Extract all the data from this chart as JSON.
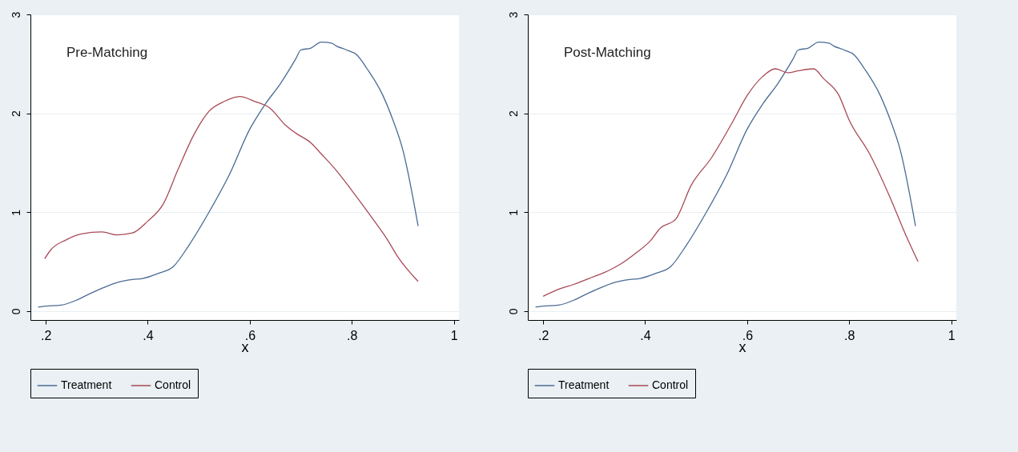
{
  "chart_data": [
    {
      "type": "line",
      "xlabel": "x",
      "annotations": [
        "Pre-Matching"
      ],
      "xlim": [
        0.17,
        1.01
      ],
      "ylim": [
        -0.09,
        3.0
      ],
      "xticks": [
        {
          "value": 0.2,
          "label": ".2"
        },
        {
          "value": 0.4,
          "label": ".4"
        },
        {
          "value": 0.6,
          "label": ".6"
        },
        {
          "value": 0.8,
          "label": ".8"
        },
        1
      ],
      "yticks": [
        0,
        1,
        2,
        3
      ],
      "grid": "y",
      "legend": "bottom",
      "series": [
        {
          "name": "Treatment",
          "color": "#4a6b94",
          "x": [
            0.185,
            0.2,
            0.23,
            0.26,
            0.28,
            0.31,
            0.34,
            0.37,
            0.39,
            0.42,
            0.45,
            0.48,
            0.52,
            0.56,
            0.6,
            0.63,
            0.66,
            0.69,
            0.7,
            0.72,
            0.74,
            0.76,
            0.77,
            0.79,
            0.81,
            0.83,
            0.86,
            0.88,
            0.9,
            0.93
          ],
          "values": [
            0.04,
            0.05,
            0.06,
            0.11,
            0.16,
            0.23,
            0.29,
            0.32,
            0.33,
            0.38,
            0.45,
            0.66,
            1.0,
            1.38,
            1.84,
            2.09,
            2.3,
            2.55,
            2.64,
            2.66,
            2.72,
            2.71,
            2.68,
            2.64,
            2.59,
            2.45,
            2.19,
            1.94,
            1.63,
            0.86
          ]
        },
        {
          "name": "Control",
          "color": "#a94a57",
          "x": [
            0.198,
            0.21,
            0.24,
            0.27,
            0.31,
            0.34,
            0.37,
            0.4,
            0.43,
            0.46,
            0.49,
            0.52,
            0.55,
            0.58,
            0.61,
            0.64,
            0.67,
            0.69,
            0.72,
            0.74,
            0.77,
            0.8,
            0.84,
            0.87,
            0.89,
            0.93
          ],
          "values": [
            0.53,
            0.62,
            0.72,
            0.78,
            0.8,
            0.77,
            0.79,
            0.91,
            1.08,
            1.44,
            1.78,
            2.02,
            2.12,
            2.17,
            2.12,
            2.05,
            1.88,
            1.8,
            1.7,
            1.59,
            1.42,
            1.22,
            0.94,
            0.72,
            0.55,
            0.3
          ]
        }
      ]
    },
    {
      "type": "line",
      "xlabel": "x",
      "annotations": [
        "Post-Matching"
      ],
      "xlim": [
        0.17,
        1.01
      ],
      "ylim": [
        -0.09,
        3.0
      ],
      "xticks": [
        {
          "value": 0.2,
          "label": ".2"
        },
        {
          "value": 0.4,
          "label": ".4"
        },
        {
          "value": 0.6,
          "label": ".6"
        },
        {
          "value": 0.8,
          "label": ".8"
        },
        1
      ],
      "yticks": [
        0,
        1,
        2,
        3
      ],
      "grid": "y",
      "legend": "bottom",
      "series": [
        {
          "name": "Treatment",
          "color": "#4a6b94",
          "x": [
            0.185,
            0.2,
            0.23,
            0.26,
            0.28,
            0.31,
            0.34,
            0.37,
            0.39,
            0.42,
            0.45,
            0.48,
            0.52,
            0.56,
            0.6,
            0.63,
            0.66,
            0.69,
            0.7,
            0.72,
            0.74,
            0.76,
            0.77,
            0.79,
            0.81,
            0.83,
            0.86,
            0.88,
            0.9,
            0.93
          ],
          "values": [
            0.04,
            0.05,
            0.06,
            0.11,
            0.16,
            0.23,
            0.29,
            0.32,
            0.33,
            0.38,
            0.45,
            0.66,
            1.0,
            1.38,
            1.84,
            2.09,
            2.3,
            2.55,
            2.64,
            2.66,
            2.72,
            2.71,
            2.68,
            2.64,
            2.59,
            2.45,
            2.19,
            1.94,
            1.63,
            0.86
          ]
        },
        {
          "name": "Control",
          "color": "#a94a57",
          "x": [
            0.2,
            0.23,
            0.26,
            0.29,
            0.32,
            0.35,
            0.38,
            0.41,
            0.43,
            0.46,
            0.49,
            0.53,
            0.57,
            0.6,
            0.63,
            0.655,
            0.68,
            0.7,
            0.73,
            0.75,
            0.78,
            0.8,
            0.84,
            0.88,
            0.91,
            0.935
          ],
          "values": [
            0.15,
            0.22,
            0.27,
            0.33,
            0.39,
            0.47,
            0.58,
            0.71,
            0.84,
            0.93,
            1.27,
            1.55,
            1.9,
            2.18,
            2.37,
            2.45,
            2.41,
            2.43,
            2.45,
            2.35,
            2.18,
            1.93,
            1.59,
            1.15,
            0.78,
            0.5
          ]
        }
      ]
    }
  ]
}
